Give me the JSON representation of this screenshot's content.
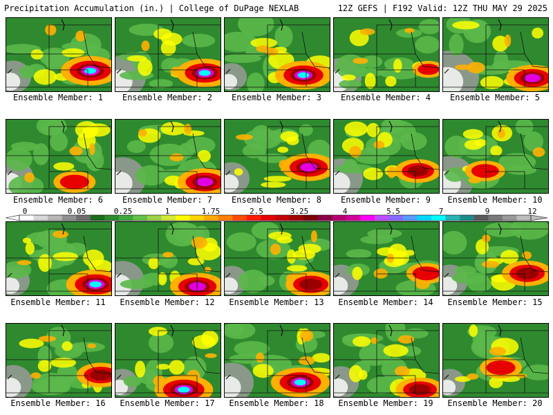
{
  "header": {
    "title": "Precipitation Accumulation (in.) | College of DuPage NEXLAB",
    "run_info": "12Z GEFS | F192 Valid: 12Z THU MAY 29 2025"
  },
  "caption_prefix": "Ensemble Member: ",
  "members": [
    {
      "id": "1",
      "hot": [
        0.8,
        0.72
      ],
      "intensity": 0.95,
      "dry": 0.2
    },
    {
      "id": "2",
      "hot": [
        0.85,
        0.75
      ],
      "intensity": 0.9,
      "dry": 0.4
    },
    {
      "id": "3",
      "hot": [
        0.75,
        0.78
      ],
      "intensity": 0.9,
      "dry": 0.1
    },
    {
      "id": "4",
      "hot": [
        0.9,
        0.7
      ],
      "intensity": 0.3,
      "dry": 0.3
    },
    {
      "id": "5",
      "hot": [
        0.85,
        0.82
      ],
      "intensity": 0.8,
      "dry": 0.6
    },
    {
      "id": "6",
      "hot": [
        0.65,
        0.85
      ],
      "intensity": 0.55,
      "dry": 0.3
    },
    {
      "id": "7",
      "hot": [
        0.85,
        0.85
      ],
      "intensity": 0.85,
      "dry": 0.4
    },
    {
      "id": "8",
      "hot": [
        0.8,
        0.65
      ],
      "intensity": 0.85,
      "dry": 0.2
    },
    {
      "id": "9",
      "hot": [
        0.8,
        0.7
      ],
      "intensity": 0.65,
      "dry": 0.35
    },
    {
      "id": "10",
      "hot": [
        0.4,
        0.7
      ],
      "intensity": 0.5,
      "dry": 0.45
    },
    {
      "id": "11",
      "hot": [
        0.85,
        0.85
      ],
      "intensity": 0.95,
      "dry": 0.15
    },
    {
      "id": "12",
      "hot": [
        0.78,
        0.88
      ],
      "intensity": 0.85,
      "dry": 0.35
    },
    {
      "id": "13",
      "hot": [
        0.82,
        0.85
      ],
      "intensity": 0.75,
      "dry": 0.15
    },
    {
      "id": "14",
      "hot": [
        0.88,
        0.7
      ],
      "intensity": 0.5,
      "dry": 0.2
    },
    {
      "id": "15",
      "hot": [
        0.8,
        0.7
      ],
      "intensity": 0.75,
      "dry": 0.2
    },
    {
      "id": "16",
      "hot": [
        0.9,
        0.7
      ],
      "intensity": 0.7,
      "dry": 0.25
    },
    {
      "id": "17",
      "hot": [
        0.65,
        0.9
      ],
      "intensity": 0.95,
      "dry": 0.1
    },
    {
      "id": "18",
      "hot": [
        0.72,
        0.8
      ],
      "intensity": 0.95,
      "dry": 0.35
    },
    {
      "id": "19",
      "hot": [
        0.82,
        0.9
      ],
      "intensity": 0.7,
      "dry": 0.2
    },
    {
      "id": "20",
      "hot": [
        0.55,
        0.6
      ],
      "intensity": 0.55,
      "dry": 0.1
    }
  ],
  "colorbar": {
    "labels": [
      "0",
      "0.05",
      "0.25",
      "1",
      "1.75",
      "2.5",
      "3.25",
      "4",
      "5.5",
      "7",
      "9",
      "12"
    ],
    "colors": [
      "#ffffff",
      "#d8d8d8",
      "#b8b8b8",
      "#909090",
      "#6e6e6e",
      "#1f6a1f",
      "#2f8a2f",
      "#3fa83f",
      "#66c14a",
      "#9ed24a",
      "#d4e83a",
      "#ffff00",
      "#ffd400",
      "#ffab00",
      "#ff7f00",
      "#ff4a00",
      "#ff1a00",
      "#e60000",
      "#c40000",
      "#a00000",
      "#7a0000",
      "#8b0046",
      "#b4006e",
      "#d2009b",
      "#ff00ff",
      "#c14cff",
      "#8b6bff",
      "#5a9bff",
      "#00d8ff",
      "#00ffff",
      "#2ab3b3",
      "#1f8a8a",
      "#5a5a5a",
      "#7a7a7a",
      "#9a9a9a",
      "#bdbdbd"
    ]
  },
  "legend_colors": {
    "green_dark": "#2f8a2f",
    "green": "#5bb84a",
    "yellow": "#ffff00",
    "orange": "#ffb000",
    "red": "#e60000",
    "darkred": "#9a0000",
    "magenta": "#e000e0",
    "cyan": "#00ffff",
    "gray": "#9a9a9a"
  }
}
